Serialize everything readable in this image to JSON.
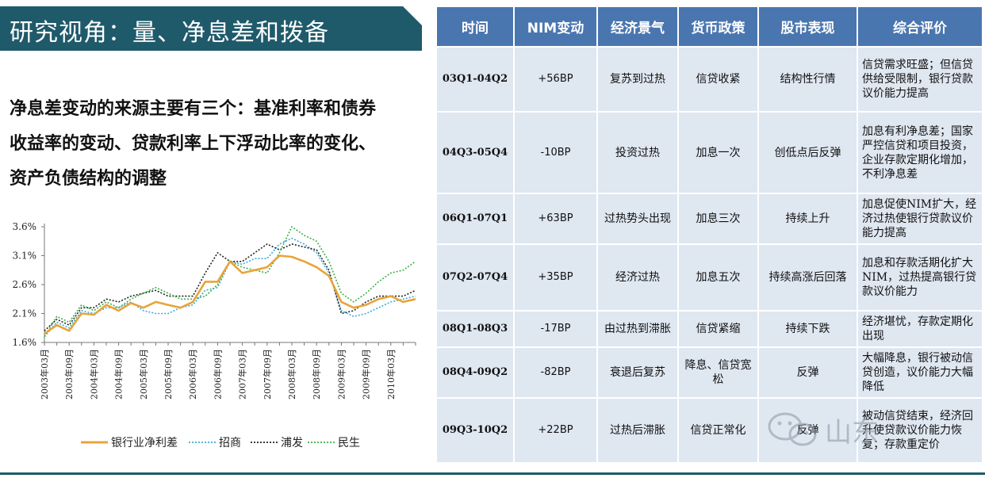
{
  "title": "研究视角：量、净息差和拨备",
  "intro_lines": [
    "净息差变动的来源主要有三个：基准利率和债券",
    "收益率的变动、贷款利率上下浮动比率的变化、",
    "资产负债结构的调整"
  ],
  "chart_data": {
    "type": "line",
    "title": "",
    "xlabel": "",
    "ylabel": "",
    "ylim": [
      1.6,
      3.6
    ],
    "yticks": [
      "1.6%",
      "2.1%",
      "2.6%",
      "3.1%",
      "3.6%"
    ],
    "ytick_values": [
      1.6,
      2.1,
      2.6,
      3.1,
      3.6
    ],
    "x_labels": [
      "2003年03月",
      "2003年09月",
      "2004年03月",
      "2004年09月",
      "2005年03月",
      "2005年09月",
      "2006年03月",
      "2006年09月",
      "2007年03月",
      "2007年09月",
      "2008年03月",
      "2008年09月",
      "2009年03月",
      "2009年09月",
      "2010年03月"
    ],
    "legend_position": "bottom",
    "series": [
      {
        "name": "银行业净利差",
        "color": "#e8a43a",
        "style": "solid",
        "values": [
          1.75,
          1.9,
          1.8,
          2.1,
          2.08,
          2.25,
          2.15,
          2.28,
          2.2,
          2.3,
          2.25,
          2.2,
          2.3,
          2.65,
          2.65,
          3.0,
          2.8,
          2.85,
          2.9,
          3.1,
          3.08,
          3.0,
          2.9,
          2.75,
          2.3,
          2.2,
          2.25,
          2.35,
          2.4,
          2.3,
          2.35
        ]
      },
      {
        "name": "招商",
        "color": "#3ca9d8",
        "style": "dotted",
        "values": [
          1.7,
          1.95,
          1.85,
          2.15,
          2.1,
          2.2,
          2.2,
          2.3,
          2.15,
          2.1,
          2.1,
          2.2,
          2.25,
          2.5,
          2.55,
          3.0,
          2.95,
          3.05,
          3.05,
          3.3,
          3.4,
          3.3,
          3.15,
          2.8,
          2.15,
          2.05,
          2.1,
          2.2,
          2.3,
          2.35,
          2.4
        ]
      },
      {
        "name": "浦发",
        "color": "#222222",
        "style": "dotted",
        "values": [
          1.8,
          2.0,
          1.9,
          2.2,
          2.2,
          2.35,
          2.3,
          2.4,
          2.45,
          2.5,
          2.4,
          2.4,
          2.4,
          2.8,
          3.15,
          3.0,
          3.0,
          3.15,
          3.3,
          3.2,
          3.3,
          3.25,
          3.2,
          2.85,
          2.1,
          2.15,
          2.3,
          2.4,
          2.4,
          2.4,
          2.5
        ]
      },
      {
        "name": "民生",
        "color": "#3cb043",
        "style": "dotted",
        "values": [
          1.7,
          2.05,
          1.95,
          2.25,
          2.15,
          2.3,
          2.2,
          2.35,
          2.45,
          2.55,
          2.45,
          2.35,
          2.35,
          2.4,
          2.6,
          3.0,
          2.9,
          2.85,
          2.8,
          3.15,
          3.6,
          3.45,
          3.35,
          3.0,
          2.45,
          2.3,
          2.45,
          2.65,
          2.8,
          2.85,
          3.0
        ]
      }
    ]
  },
  "table": {
    "headers": [
      "时间",
      "NIM变动",
      "经济景气",
      "货币政策",
      "股市表现",
      "综合评价"
    ],
    "rows": [
      [
        "03Q1-04Q2",
        "+56BP",
        "复苏到过热",
        "信贷收紧",
        "结构性行情",
        "信贷需求旺盛；但信贷供给受限制，银行贷款议价能力提高"
      ],
      [
        "04Q3-05Q4",
        "-10BP",
        "投资过热",
        "加息一次",
        "创低点后反弹",
        "加息有利净息差；国家严控信贷和项目投资，企业存款定期化增加，不利净息差"
      ],
      [
        "06Q1-07Q1",
        "+63BP",
        "过热势头出现",
        "加息三次",
        "持续上升",
        "加息促使NIM扩大，经济过热使银行贷款议价能力提高"
      ],
      [
        "07Q2-07Q4",
        "+35BP",
        "经济过热",
        "加息五次",
        "持续高涨后回落",
        "加息和存款活期化扩大NIM，过热提高银行贷款议价能力"
      ],
      [
        "08Q1-08Q3",
        "-17BP",
        "由过热到滞胀",
        "信贷紧缩",
        "持续下跌",
        "经济堪忧，存款定期化出现"
      ],
      [
        "08Q4-09Q2",
        "-82BP",
        "衰退后复苏",
        "降息、信贷宽松",
        "反弹",
        "大幅降息，银行被动信贷创造，议价能力大幅降低"
      ],
      [
        "09Q3-10Q2",
        "+22BP",
        "过热后滞胀",
        "信贷正常化",
        "反弹",
        "被动信贷结束，经济回升使贷款议价能力恢复；存款重定价"
      ]
    ]
  },
  "watermark": {
    "text": "山东",
    "icon": "wechat-icon"
  },
  "colors": {
    "banner": "#1f5a6b",
    "table_header": "#4a76b0",
    "table_cell": "#dfe7f1",
    "rule": "#1f5a6b"
  }
}
